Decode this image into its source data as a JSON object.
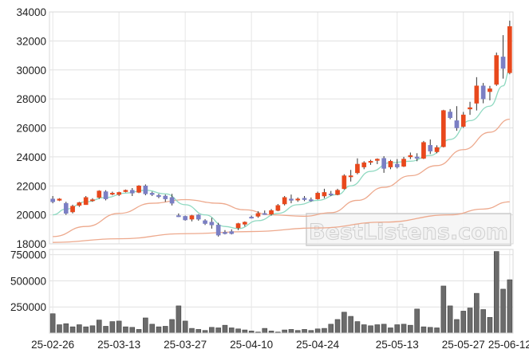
{
  "chart_data": [
    {
      "type": "candlestick",
      "title": "",
      "ylim": [
        18000,
        34000
      ],
      "yticks": [
        18000,
        20000,
        22000,
        24000,
        26000,
        28000,
        30000,
        32000,
        34000
      ],
      "xticks": [
        "25-02-26",
        "25-03-13",
        "25-03-27",
        "25-04-10",
        "25-04-24",
        "25-05-13",
        "25-05-27",
        "25-06-12"
      ],
      "grid": true,
      "watermark": "BestListens.com",
      "colors": {
        "up": "#e8481c",
        "down": "#7b7fc4",
        "ma5": "#8fd9c1",
        "ma20": "#eda98d",
        "ma60": "#eda98d"
      },
      "candles": [
        [
          21100,
          21300,
          20800,
          20900
        ],
        [
          21000,
          21150,
          20950,
          21100
        ],
        [
          20800,
          20900,
          20000,
          20100
        ],
        [
          20200,
          20700,
          20100,
          20600
        ],
        [
          20650,
          20900,
          20550,
          20850
        ],
        [
          20700,
          21300,
          20700,
          21200
        ],
        [
          21000,
          21150,
          20900,
          21050
        ],
        [
          21200,
          21700,
          21100,
          21650
        ],
        [
          21600,
          21700,
          21000,
          21100
        ],
        [
          21500,
          21600,
          21350,
          21500
        ],
        [
          21400,
          21600,
          21300,
          21550
        ],
        [
          21600,
          21750,
          21550,
          21700
        ],
        [
          21700,
          21850,
          21300,
          21500
        ],
        [
          21550,
          22050,
          21500,
          22000
        ],
        [
          22000,
          22100,
          21350,
          21450
        ],
        [
          21500,
          21600,
          21300,
          21400
        ],
        [
          21350,
          21450,
          21150,
          21250
        ],
        [
          21300,
          21400,
          20900,
          21100
        ],
        [
          21200,
          21450,
          20650,
          20800
        ],
        [
          19950,
          20100,
          19850,
          19900
        ],
        [
          19900,
          19950,
          19600,
          19650
        ],
        [
          19700,
          20000,
          19550,
          19950
        ],
        [
          20000,
          20050,
          19600,
          19700
        ],
        [
          19600,
          19700,
          19300,
          19400
        ],
        [
          19500,
          19800,
          19050,
          19300
        ],
        [
          19300,
          19450,
          18500,
          18600
        ],
        [
          18800,
          18950,
          18650,
          18700
        ],
        [
          18850,
          19000,
          18650,
          18700
        ],
        [
          19100,
          19450,
          18950,
          19400
        ],
        [
          19350,
          19550,
          19200,
          19500
        ],
        [
          19850,
          19950,
          19750,
          19800
        ],
        [
          19900,
          20250,
          19800,
          20100
        ],
        [
          20100,
          20300,
          20000,
          20050
        ],
        [
          20050,
          20400,
          19950,
          20300
        ],
        [
          20300,
          20750,
          20250,
          20650
        ],
        [
          20750,
          21300,
          20650,
          21200
        ],
        [
          21100,
          21400,
          20800,
          21000
        ],
        [
          21050,
          21200,
          20900,
          21100
        ],
        [
          21150,
          21300,
          20950,
          21050
        ],
        [
          21050,
          21200,
          20900,
          21000
        ],
        [
          21100,
          21600,
          21050,
          21500
        ],
        [
          21300,
          21800,
          21150,
          21550
        ],
        [
          21450,
          21650,
          21300,
          21400
        ],
        [
          21400,
          21800,
          21350,
          21700
        ],
        [
          21800,
          22800,
          21750,
          22700
        ],
        [
          22700,
          23100,
          22300,
          22700
        ],
        [
          22900,
          23900,
          22800,
          23500
        ],
        [
          23300,
          23700,
          23150,
          23600
        ],
        [
          23650,
          23800,
          23450,
          23700
        ],
        [
          23750,
          23900,
          23500,
          23850
        ],
        [
          23900,
          24050,
          22900,
          23200
        ],
        [
          23300,
          23800,
          23150,
          23700
        ],
        [
          23500,
          23850,
          23200,
          23300
        ],
        [
          23350,
          24000,
          23300,
          23850
        ],
        [
          24000,
          24300,
          23850,
          24100
        ],
        [
          24000,
          24250,
          23700,
          23900
        ],
        [
          23900,
          25100,
          23850,
          25000
        ],
        [
          24800,
          25200,
          24200,
          24400
        ],
        [
          24350,
          24800,
          24250,
          24650
        ],
        [
          24700,
          27250,
          24650,
          27200
        ],
        [
          27100,
          27300,
          26600,
          26700
        ],
        [
          26500,
          27500,
          25800,
          26000
        ],
        [
          26100,
          27100,
          26000,
          26900
        ],
        [
          27300,
          27800,
          26900,
          27400
        ],
        [
          27700,
          29500,
          27200,
          28900
        ],
        [
          28900,
          29100,
          27700,
          28000
        ],
        [
          28500,
          28900,
          27900,
          28700
        ],
        [
          29000,
          31200,
          28900,
          31000
        ],
        [
          30900,
          32400,
          29400,
          30100
        ],
        [
          29800,
          33400,
          29700,
          33000
        ]
      ],
      "ma5": [
        [
          0,
          20000
        ],
        [
          2,
          20400
        ],
        [
          5,
          20900
        ],
        [
          8,
          21200
        ],
        [
          11,
          21500
        ],
        [
          14,
          21700
        ],
        [
          17,
          21450
        ],
        [
          20,
          20700
        ],
        [
          23,
          20000
        ],
        [
          26,
          19200
        ],
        [
          28,
          19050
        ],
        [
          31,
          19600
        ],
        [
          34,
          20100
        ],
        [
          37,
          20700
        ],
        [
          40,
          21000
        ],
        [
          43,
          21400
        ],
        [
          45,
          22000
        ],
        [
          48,
          23000
        ],
        [
          51,
          23600
        ],
        [
          54,
          23700
        ],
        [
          57,
          24100
        ],
        [
          60,
          25200
        ],
        [
          63,
          26500
        ],
        [
          66,
          27500
        ],
        [
          68,
          28900
        ],
        [
          69,
          30000
        ]
      ],
      "ma20": [
        [
          0,
          18500
        ],
        [
          5,
          19200
        ],
        [
          10,
          20100
        ],
        [
          15,
          20800
        ],
        [
          20,
          21050
        ],
        [
          25,
          20800
        ],
        [
          29,
          20350
        ],
        [
          33,
          20000
        ],
        [
          38,
          19900
        ],
        [
          42,
          20150
        ],
        [
          46,
          21000
        ],
        [
          50,
          21900
        ],
        [
          54,
          22700
        ],
        [
          58,
          23400
        ],
        [
          62,
          24500
        ],
        [
          66,
          25700
        ],
        [
          69,
          26600
        ]
      ],
      "ma60": [
        [
          0,
          18100
        ],
        [
          10,
          18350
        ],
        [
          20,
          18700
        ],
        [
          30,
          18850
        ],
        [
          40,
          19100
        ],
        [
          50,
          19500
        ],
        [
          60,
          20000
        ],
        [
          65,
          20400
        ],
        [
          69,
          20900
        ]
      ]
    },
    {
      "type": "bar",
      "title": "",
      "ylim": [
        0,
        800000
      ],
      "yticks": [
        250000,
        500000,
        750000
      ],
      "color": "#6b6b6b",
      "values": [
        185000,
        80000,
        90000,
        60000,
        80000,
        60000,
        70000,
        125000,
        65000,
        110000,
        115000,
        60000,
        55000,
        35000,
        145000,
        85000,
        60000,
        65000,
        130000,
        260000,
        115000,
        45000,
        35000,
        25000,
        55000,
        50000,
        75000,
        50000,
        40000,
        30000,
        20000,
        10000,
        45000,
        20000,
        10000,
        30000,
        35000,
        25000,
        35000,
        25000,
        40000,
        45000,
        85000,
        130000,
        200000,
        160000,
        110000,
        80000,
        70000,
        80000,
        85000,
        50000,
        80000,
        85000,
        75000,
        230000,
        60000,
        55000,
        50000,
        450000,
        260000,
        130000,
        210000,
        240000,
        380000,
        225000,
        150000,
        780000,
        420000,
        510000
      ]
    }
  ]
}
